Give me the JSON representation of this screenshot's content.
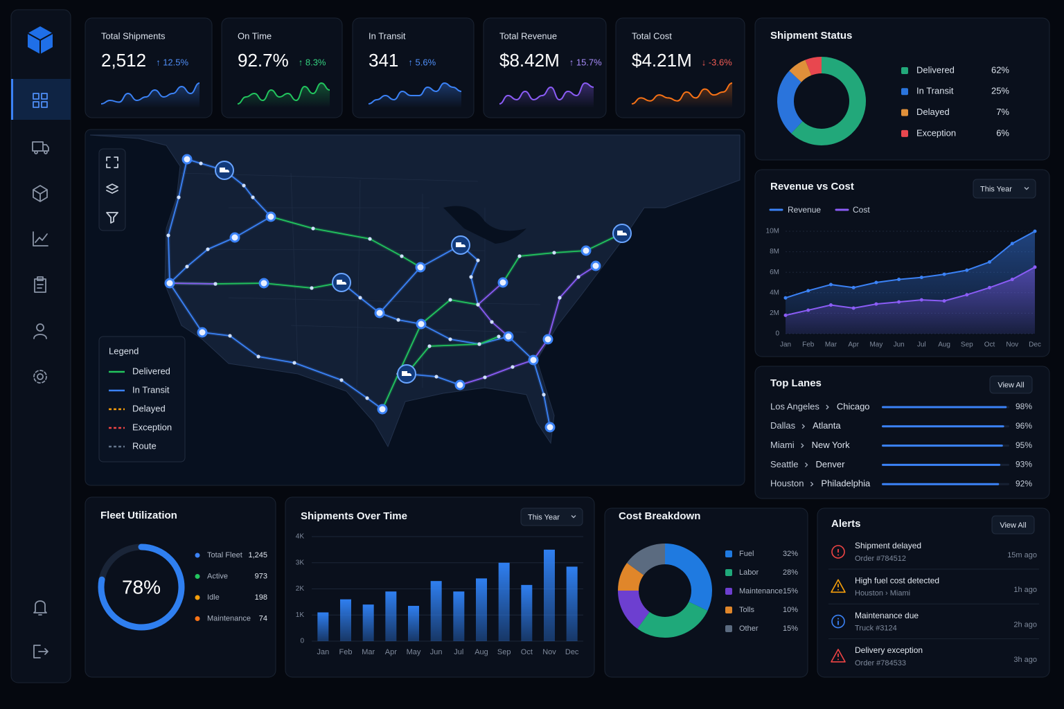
{
  "kpis": [
    {
      "label": "Total Shipments",
      "value": "2,512",
      "change": "↑ 12.5%",
      "change_color": "#4f8ef7",
      "color": "#3b82f6",
      "trend": [
        3,
        4,
        3.5,
        6,
        4,
        5,
        7,
        5,
        6,
        8,
        6,
        9
      ]
    },
    {
      "label": "On Time",
      "value": "92.7%",
      "change": "↑ 8.3%",
      "change_color": "#34d07f",
      "color": "#22c55e",
      "trend": [
        2,
        4,
        5,
        3,
        6,
        4,
        5,
        3,
        7,
        5,
        8,
        6
      ]
    },
    {
      "label": "In Transit",
      "value": "341",
      "change": "↑ 5.6%",
      "change_color": "#4f8ef7",
      "color": "#3b82f6",
      "trend": [
        3,
        4,
        5,
        4,
        6,
        5,
        5,
        7,
        6,
        8,
        7,
        6
      ]
    },
    {
      "label": "Total Revenue",
      "value": "$8.42M",
      "change": "↑ 15.7%",
      "change_color": "#a78bfa",
      "color": "#8b5cf6",
      "trend": [
        3,
        5,
        4,
        6,
        4,
        5,
        7,
        4,
        6,
        5,
        8,
        7
      ]
    },
    {
      "label": "Total Cost",
      "value": "$4.21M",
      "change": "↓ -3.6%",
      "change_color": "#f25c54",
      "color": "#f97316",
      "trend": [
        2,
        4,
        3,
        5,
        4,
        3,
        6,
        4,
        7,
        5,
        6,
        9
      ]
    }
  ],
  "map": {
    "legend_title": "Legend",
    "legend": {
      "names": [
        "Delivered",
        "In Transit",
        "Delayed",
        "Exception",
        "Route"
      ],
      "colors": [
        "#22c55e",
        "#3b82f6",
        "#f59e0b",
        "#ef4444",
        "#64748b"
      ],
      "dashed": [
        false,
        false,
        true,
        true,
        true
      ]
    }
  },
  "shipment_status": {
    "type": "pie",
    "title": "Shipment Status",
    "categories": [
      "Delivered",
      "In Transit",
      "Delayed",
      "Exception"
    ],
    "values": [
      62,
      25,
      7,
      6
    ],
    "value_labels": [
      "62%",
      "25%",
      "7%",
      "6%"
    ],
    "colors": [
      "#22a87a",
      "#2a74dc",
      "#e0903a",
      "#e8474f"
    ]
  },
  "revenue_vs_cost": {
    "type": "area",
    "title": "Revenue vs Cost",
    "dropdown": "This Year",
    "categories": [
      "Jan",
      "Feb",
      "Mar",
      "Apr",
      "May",
      "Jun",
      "Jul",
      "Aug",
      "Sep",
      "Oct",
      "Nov",
      "Dec"
    ],
    "series": [
      {
        "name": "Revenue",
        "color": "#3b82f6",
        "values": [
          3500000,
          4200000,
          4800000,
          4500000,
          5000000,
          5300000,
          5500000,
          5800000,
          6200000,
          7000000,
          8800000,
          10000000
        ]
      },
      {
        "name": "Cost",
        "color": "#8b5cf6",
        "values": [
          1800000,
          2300000,
          2800000,
          2500000,
          2900000,
          3100000,
          3300000,
          3200000,
          3800000,
          4500000,
          5300000,
          6500000
        ]
      }
    ],
    "ylim": [
      0,
      10000000
    ],
    "yticks": [
      0,
      {
        "value": 2000000,
        "label": "2M"
      },
      {
        "value": 4000000,
        "label": "4M"
      },
      {
        "value": 6000000,
        "label": "6M"
      },
      {
        "value": 8000000,
        "label": "8M"
      },
      {
        "value": 10000000,
        "label": "10M"
      }
    ]
  },
  "top_lanes": {
    "type": "bar",
    "title": "Top Lanes",
    "button": "View All",
    "from": [
      "Los Angeles",
      "Dallas",
      "Miami",
      "Seattle",
      "Houston"
    ],
    "to": [
      "Chicago",
      "Atlanta",
      "New York",
      "Denver",
      "Philadelphia"
    ],
    "values": [
      98,
      96,
      95,
      93,
      92
    ],
    "value_labels": [
      "98%",
      "96%",
      "95%",
      "93%",
      "92%"
    ],
    "xlim": [
      0,
      100
    ],
    "color": "#3b82f6"
  },
  "fleet_utilization": {
    "type": "gauge",
    "title": "Fleet Utilization",
    "value": 78,
    "value_label": "78%",
    "ylim": [
      0,
      100
    ],
    "color": "#2f7ff0",
    "items": {
      "labels": [
        "Total Fleet",
        "Active",
        "Idle",
        "Maintenance"
      ],
      "values": [
        "1,245",
        "973",
        "198",
        "74"
      ],
      "colors": [
        "#3b82f6",
        "#22c55e",
        "#f59e0b",
        "#f97316"
      ]
    }
  },
  "shipments_over_time": {
    "type": "bar",
    "title": "Shipments Over Time",
    "dropdown": "This Year",
    "categories": [
      "Jan",
      "Feb",
      "Mar",
      "Apr",
      "May",
      "Jun",
      "Jul",
      "Aug",
      "Sep",
      "Oct",
      "Nov",
      "Dec"
    ],
    "values": [
      1100,
      1600,
      1400,
      1900,
      1350,
      2300,
      1900,
      2400,
      3000,
      2150,
      3500,
      2850
    ],
    "ylim": [
      0,
      4000
    ],
    "yticks": [
      0,
      {
        "value": 1000,
        "label": "1K"
      },
      {
        "value": 2000,
        "label": "2K"
      },
      {
        "value": 3000,
        "label": "3K"
      },
      {
        "value": 4000,
        "label": "4K"
      }
    ],
    "color": "#2f7ff0"
  },
  "cost_breakdown": {
    "type": "pie",
    "title": "Cost Breakdown",
    "categories": [
      "Fuel",
      "Labor",
      "Maintenance",
      "Tolls",
      "Other"
    ],
    "values": [
      32,
      28,
      15,
      10,
      15
    ],
    "value_labels": [
      "32%",
      "28%",
      "15%",
      "10%",
      "15%"
    ],
    "colors": [
      "#1f7ae0",
      "#1fa97a",
      "#6d3fd0",
      "#e0862a",
      "#5b6b80"
    ]
  },
  "alerts": {
    "title": "Alerts",
    "button": "View All",
    "items": [
      {
        "title": "Shipment delayed",
        "detail": "Order #784512",
        "time": "15m ago",
        "color": "#ef4444"
      },
      {
        "title": "High fuel cost detected",
        "detail": "Houston › Miami",
        "time": "1h ago",
        "color": "#f59e0b"
      },
      {
        "title": "Maintenance due",
        "detail": "Truck #3124",
        "time": "2h ago",
        "color": "#3b82f6"
      },
      {
        "title": "Delivery exception",
        "detail": "Order #784533",
        "time": "3h ago",
        "color": "#ef4444"
      }
    ]
  }
}
